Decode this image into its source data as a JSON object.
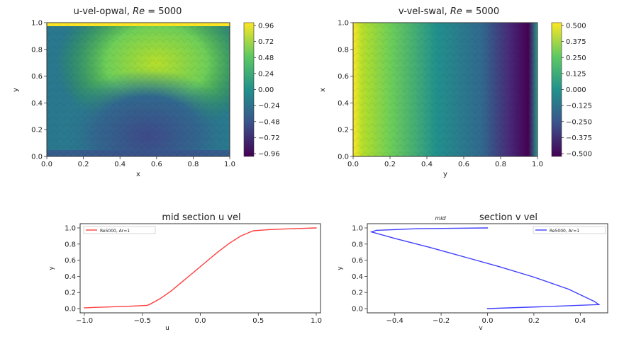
{
  "chart_data": [
    {
      "type": "heatmap",
      "title": "u-vel-opwal, ",
      "title_math": "Re",
      "title_suffix": " = 5000",
      "xlabel": "x",
      "ylabel": "y",
      "xlim": [
        0,
        1
      ],
      "ylim": [
        0,
        1
      ],
      "xticks": [
        "0.0",
        "0.2",
        "0.4",
        "0.6",
        "0.8",
        "1.0"
      ],
      "yticks": [
        "0.0",
        "0.2",
        "0.4",
        "0.6",
        "0.8",
        "1.0"
      ],
      "colorbar_ticks": [
        "0.96",
        "0.72",
        "0.48",
        "0.24",
        "0.00",
        "−0.24",
        "−0.48",
        "−0.72",
        "−0.96"
      ],
      "colorbar_range": [
        -0.96,
        0.96
      ],
      "colormap": "viridis"
    },
    {
      "type": "heatmap",
      "title": "v-vel-swal, ",
      "title_math": "Re",
      "title_suffix": " = 5000",
      "xlabel": "y",
      "ylabel": "x",
      "xlim": [
        0,
        1
      ],
      "ylim": [
        0,
        1
      ],
      "xticks": [
        "0.0",
        "0.2",
        "0.4",
        "0.6",
        "0.8",
        "1.0"
      ],
      "yticks": [
        "0.0",
        "0.2",
        "0.4",
        "0.6",
        "0.8",
        "1.0"
      ],
      "colorbar_ticks": [
        "0.500",
        "0.375",
        "0.250",
        "0.125",
        "0.000",
        "−0.125",
        "−0.250",
        "−0.375",
        "−0.500"
      ],
      "colorbar_range": [
        -0.5,
        0.5
      ],
      "colormap": "viridis"
    },
    {
      "type": "line",
      "title": "mid section u vel",
      "xlabel": "u",
      "ylabel": "y",
      "xlim": [
        -1.0,
        1.0
      ],
      "ylim": [
        0.0,
        1.0
      ],
      "xticks": [
        "−1.0",
        "−0.5",
        "0.0",
        "0.5",
        "1.0"
      ],
      "yticks": [
        "0.0",
        "0.2",
        "0.4",
        "0.6",
        "0.8",
        "1.0"
      ],
      "legend_position": "top-left",
      "series": [
        {
          "name": "Re5000, Ar=1",
          "color": "#ff4040",
          "x": [
            -1.0,
            -0.8,
            -0.6,
            -0.46,
            -0.44,
            -0.35,
            -0.25,
            -0.15,
            -0.05,
            0.05,
            0.15,
            0.25,
            0.35,
            0.44,
            0.46,
            0.6,
            0.8,
            1.0
          ],
          "y": [
            0.01,
            0.02,
            0.03,
            0.04,
            0.05,
            0.12,
            0.22,
            0.34,
            0.46,
            0.58,
            0.7,
            0.81,
            0.9,
            0.955,
            0.965,
            0.98,
            0.99,
            1.0
          ]
        }
      ]
    },
    {
      "type": "line",
      "title": "section v vel",
      "title_prefix": "mid",
      "xlabel": "v",
      "ylabel": "y",
      "xlim": [
        -0.5,
        0.5
      ],
      "ylim": [
        0.0,
        1.0
      ],
      "xticks": [
        "−0.4",
        "−0.2",
        "0.0",
        "0.2",
        "0.4"
      ],
      "yticks": [
        "0.0",
        "0.2",
        "0.4",
        "0.6",
        "0.8",
        "1.0"
      ],
      "legend_position": "top-right",
      "series": [
        {
          "name": "Re5000, Ar=1",
          "color": "#4040ff",
          "x": [
            0.0,
            -0.3,
            -0.48,
            -0.5,
            -0.4,
            -0.25,
            -0.1,
            0.05,
            0.2,
            0.35,
            0.46,
            0.48,
            0.3,
            0.0
          ],
          "y": [
            1.0,
            0.99,
            0.97,
            0.95,
            0.87,
            0.76,
            0.64,
            0.52,
            0.39,
            0.24,
            0.09,
            0.05,
            0.03,
            0.0
          ]
        }
      ]
    }
  ]
}
